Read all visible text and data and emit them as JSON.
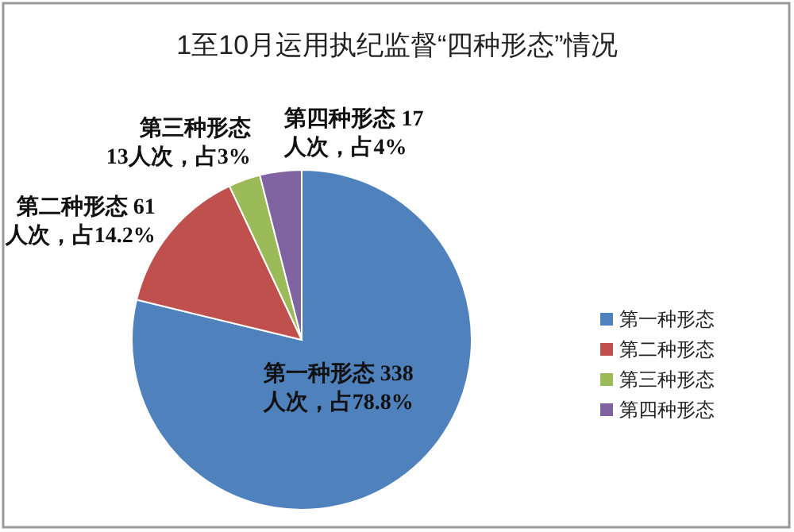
{
  "chart_data": {
    "type": "pie",
    "title": "1至10月运用执纪监督“四种形态”情况",
    "categories": [
      "第一种形态",
      "第二种形态",
      "第三种形态",
      "第四种形态"
    ],
    "values": [
      338,
      61,
      13,
      17
    ],
    "colors": [
      "#4f81bd",
      "#c0504d",
      "#9bbb59",
      "#8064a2"
    ],
    "value_labels": [
      "第一种形态 338\n人次，占78.8%",
      "第二种形态 61\n人次，占14.2%",
      "第三种形态\n13人次，占3%",
      "第四种形态 17\n人次，占4%"
    ],
    "legend": "right"
  }
}
